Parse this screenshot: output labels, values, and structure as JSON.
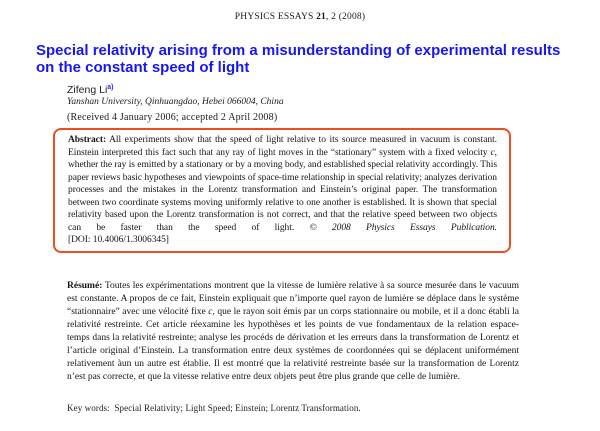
{
  "header": {
    "journal": "PHYSICS ESSAYS ",
    "volume": "21",
    "issue": ", 2 (2008)"
  },
  "title": "Special relativity arising from a misunderstanding of experimental results on the constant speed of light",
  "author": {
    "name": "Zifeng Li",
    "footnote_marker": "a)"
  },
  "affiliation": "Yanshan University, Qinhuangdao, Hebei 066004, China",
  "received": "(Received 4 January 2006; accepted 2 April 2008)",
  "abstract": {
    "label": "Abstract:",
    "body_before_c": "All experiments show that the speed of light relative to its source measured in vacuum is constant. Einstein interpreted this fact such that any ray of light moves in the “stationary” system with a fixed velocity ",
    "c_symbol": "c",
    "body_after_c": ", whether the ray is emitted by a stationary or by a moving body, and established special relativity accordingly. This paper reviews basic hypotheses and viewpoints of space-time relationship in special relativity; analyzes derivation processes and the mistakes in the Lorentz transformation and Einstein’s original paper. The transformation between two coordinate systems moving uniformly relative to one another is established. It is shown that special relativity based upon the Lorentz transformation is not correct, and that the relative speed between two objects can be faster than the speed of light. ",
    "copyright": "© 2008 Physics Essays Publication.",
    "doi": "[DOI: 10.4006/1.3006345]"
  },
  "resume": {
    "label": "Résumé:",
    "body_before_c": "Toutes les expérimentations montrent que la vitesse de lumière relative à sa source mesurée dans le vacuum est constante. A propos de ce fait, Einstein expliquait que n’importe quel rayon de lumière se déplace dans le système “stationnaire” avec une vélocité fixe ",
    "c_symbol": "c",
    "body_after_c": ", que le rayon soit émis par un corps stationnaire ou mobile, et il a donc établi la relativité restreinte. Cet article réexamine les hypothèses et les points de vue fondamentaux de la relation espace-temps dans la relativité restreinte; analyse les procéds de dérivation et les erreurs dans la transformation de Lorentz et l’article original d’Einstein. La transformation entre deux systèmes de coordonnées qui se déplacent uniformément relativement àun un autre est établie. Il est montré que la relativité restreinte basée sur la transformation de Lorentz n’est pas correcte, et que la vitesse relative entre deux objets peut être plus grande que celle de lumière."
  },
  "keywords": {
    "label": "Key words:",
    "body": "Special Relativity; Light Speed; Einstein; Lorentz Transformation."
  },
  "colors": {
    "title_blue": "#1717ef",
    "footnote_blue": "#2a2af0",
    "abstract_border": "#e94f25",
    "body_text": "#151515"
  }
}
